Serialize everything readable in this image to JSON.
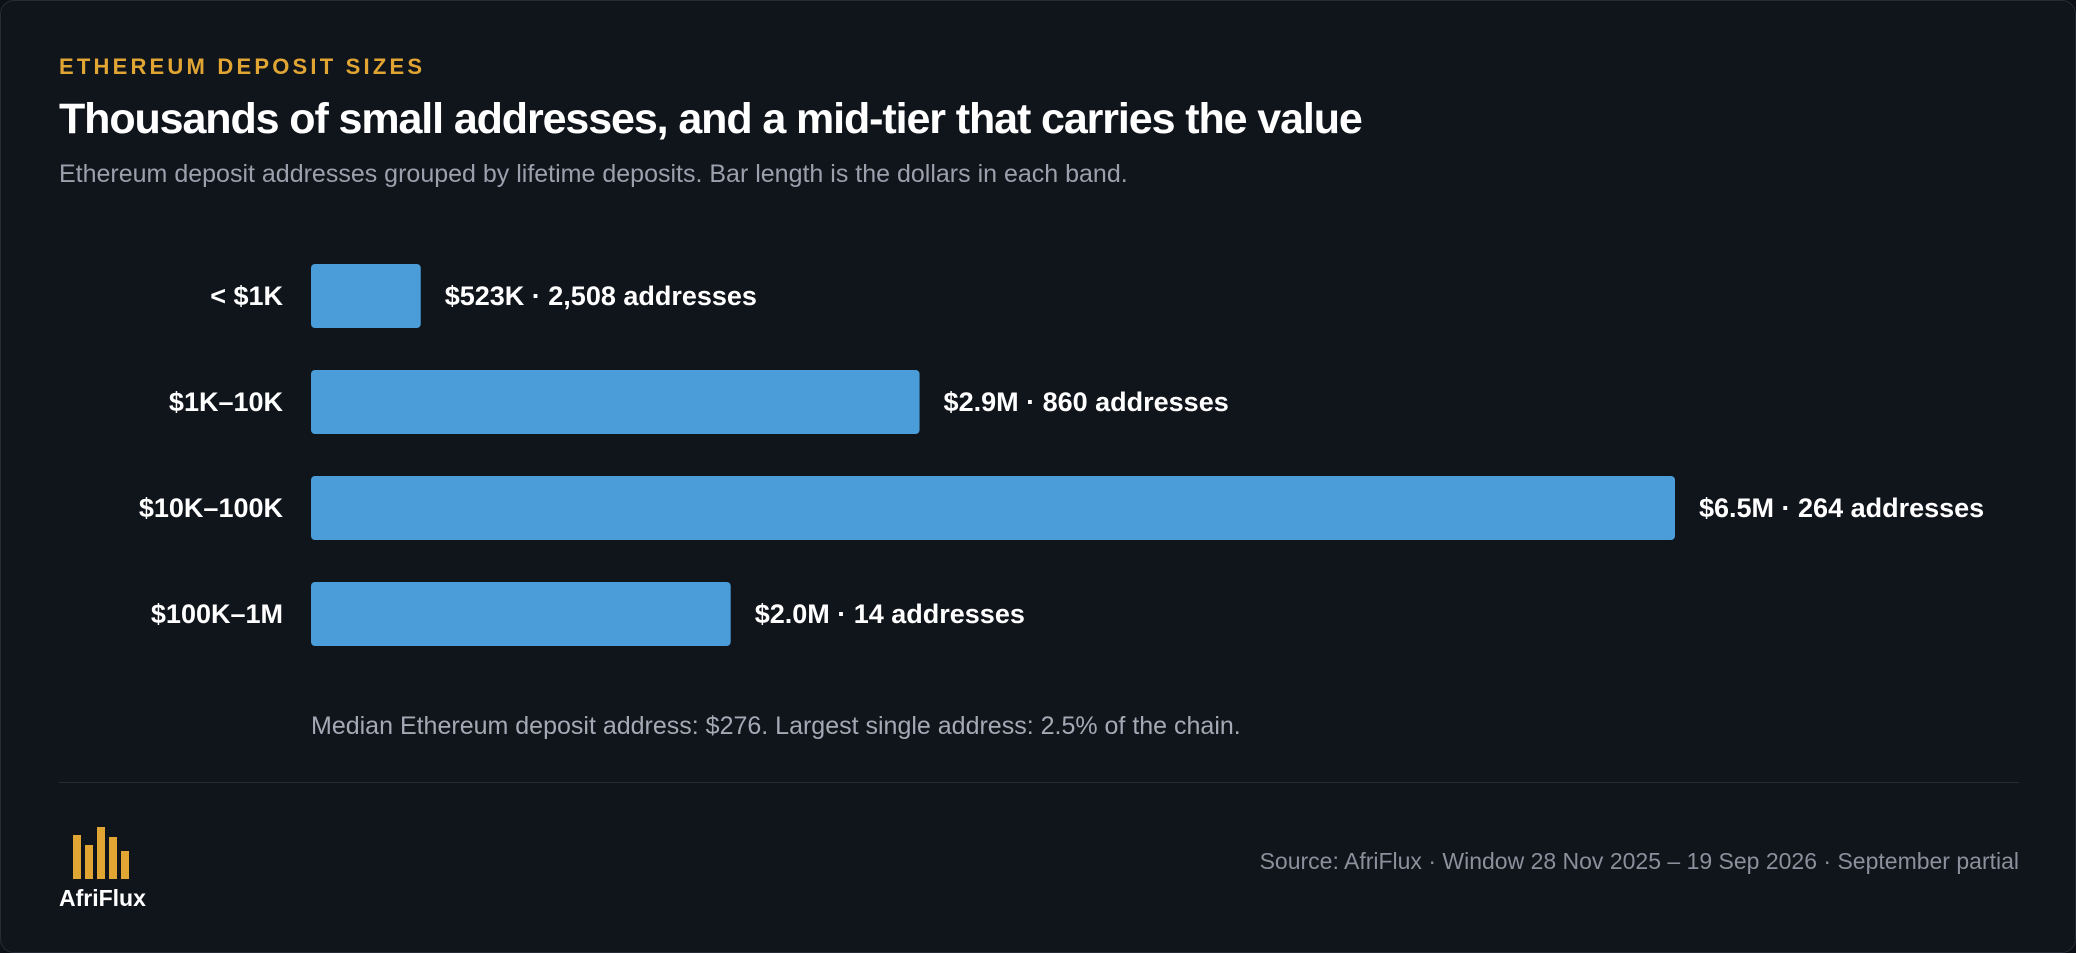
{
  "header": {
    "kicker": "ETHEREUM DEPOSIT SIZES",
    "title": "Thousands of small addresses, and a mid-tier that carries the value",
    "subtitle": "Ethereum deposit addresses grouped by lifetime deposits. Bar length is the dollars in each band."
  },
  "chart_data": {
    "type": "bar",
    "orientation": "horizontal",
    "categories": [
      "< $1K",
      "$1K–10K",
      "$10K–100K",
      "$100K–1M"
    ],
    "values": [
      523000,
      2900000,
      6500000,
      2000000
    ],
    "address_counts": [
      2508,
      860,
      264,
      14
    ],
    "data_labels": [
      "$523K · 2,508 addresses",
      "$2.9M · 860 addresses",
      "$6.5M · 264 addresses",
      "$2.0M · 14 addresses"
    ],
    "title": "",
    "xlabel": "",
    "ylabel": "",
    "xlim": [
      0,
      6500000
    ],
    "grid": false,
    "legend": "none",
    "bar_color": "#4a9dd9"
  },
  "note": "Median Ethereum deposit address: $276. Largest single address: 2.5% of the chain.",
  "footer": {
    "brand": "AfriFlux",
    "logo_icon": "bar-chart-logo-icon",
    "source": "Source: AfriFlux · Window 28 Nov 2025 – 19 Sep 2026 · September partial"
  },
  "colors": {
    "background": "#10141b",
    "accent": "#e1a534",
    "bar": "#4a9dd9",
    "text": "#ffffff",
    "muted": "#9aa1ad"
  }
}
